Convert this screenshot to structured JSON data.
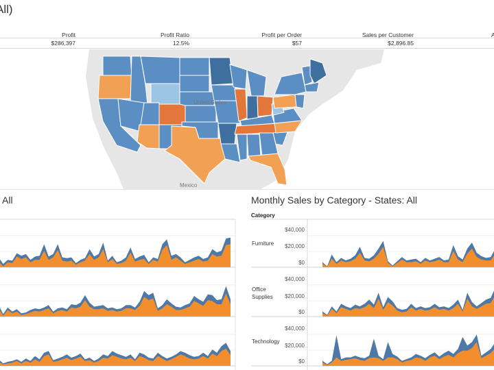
{
  "dashboard": {
    "title": "All)"
  },
  "kpis": [
    {
      "label": "Profit",
      "value": "$286,397"
    },
    {
      "label": "Profit Ratio",
      "value": "12.5%"
    },
    {
      "label": "Profit per Order",
      "value": "$57"
    },
    {
      "label": "Sales per Customer",
      "value": "$2,896.85"
    },
    {
      "label": "A",
      "value": ""
    }
  ],
  "map": {
    "labels": {
      "country": "United States",
      "neighbor": "Mexico"
    },
    "colors": {
      "ocean": "#ffffff",
      "land": "#e4e4e4",
      "blue": "#5b8fc4",
      "dark_blue": "#3f6f9f",
      "light_blue": "#9ec4e3",
      "orange": "#f2a154",
      "dark_orange": "#e3763a"
    }
  },
  "left_panel": {
    "title": "All"
  },
  "right_panel": {
    "title": "Monthly Sales by Category - States: All",
    "category_header": "Category",
    "categories": [
      {
        "name": "Furniture",
        "ticks": [
          "$40,000",
          "$20,000",
          "$0"
        ]
      },
      {
        "name": "Office Supplies",
        "ticks": [
          "$40,000",
          "$20,000",
          "$0"
        ]
      },
      {
        "name": "Technology",
        "ticks": [
          "$40,000",
          "$20,000",
          "$0"
        ]
      }
    ]
  },
  "chart_data": {
    "type": "area",
    "title": "Monthly Sales by Category - States: All",
    "colors": {
      "sales": "#4e79a7",
      "overlay": "#f28e2b"
    },
    "ylim": [
      0,
      50000
    ],
    "series_by_category": {
      "Furniture": {
        "left": [
          12000,
          4000,
          9000,
          8000,
          17000,
          14000,
          16000,
          9000,
          13000,
          14000,
          28000,
          13000,
          16000,
          28000,
          12000,
          11000,
          12000,
          5000,
          9000,
          11000,
          22000,
          13000,
          16000,
          30000,
          8000,
          14000,
          6000,
          8000,
          12000,
          24000,
          10000,
          13000,
          15000,
          6000,
          12000,
          10000,
          28000,
          34000,
          14000,
          16000,
          12000,
          6000,
          9000,
          12000,
          14000,
          10000,
          12000,
          22000,
          18000,
          20000,
          35000,
          36000
        ],
        "left_orange": [
          7000,
          1000,
          6000,
          5000,
          13000,
          10000,
          12000,
          6000,
          9000,
          9000,
          20000,
          9000,
          12000,
          21000,
          8000,
          7000,
          8000,
          3000,
          6000,
          8000,
          16000,
          9000,
          12000,
          22000,
          6000,
          10000,
          4000,
          5000,
          8000,
          18000,
          7000,
          9000,
          10000,
          4000,
          9000,
          7000,
          21000,
          27000,
          9000,
          12000,
          8000,
          4000,
          6000,
          8000,
          10000,
          7000,
          8000,
          16000,
          13000,
          14000,
          27000,
          28000
        ],
        "right": [
          6000,
          1000,
          15000,
          6000,
          11000,
          8000,
          10000,
          14000,
          24000,
          11000,
          10000,
          14000,
          22000,
          31000,
          7000,
          2000,
          7000,
          12000,
          8000,
          9000,
          10000,
          6000,
          11000,
          8000,
          10000,
          12000,
          8000,
          9000,
          26000,
          13000,
          9000,
          22000,
          29000,
          17000,
          13000,
          11000,
          12000,
          22000
        ],
        "right_orange": [
          4000,
          500,
          10000,
          4000,
          8000,
          6000,
          7000,
          10000,
          17000,
          8000,
          7000,
          10000,
          16000,
          24000,
          5000,
          1000,
          5000,
          9000,
          6000,
          6000,
          7000,
          4000,
          8000,
          6000,
          7000,
          9000,
          6000,
          6000,
          19000,
          9000,
          6000,
          16000,
          22000,
          12000,
          9000,
          8000,
          8000,
          16000
        ]
      },
      "Office Supplies": {
        "left": [
          14000,
          3000,
          11000,
          6000,
          9000,
          4000,
          5000,
          8000,
          10000,
          9000,
          11000,
          14000,
          6000,
          10000,
          11000,
          9000,
          15000,
          14000,
          17000,
          26000,
          17000,
          12000,
          13000,
          14000,
          10000,
          11000,
          9000,
          10000,
          14000,
          14000,
          11000,
          18000,
          31000,
          26000,
          29000,
          10000,
          14000,
          21000,
          16000,
          12000,
          11000,
          14000,
          16000,
          25000,
          21000,
          18000,
          27000,
          26000,
          20000,
          21000,
          37000,
          21000
        ],
        "left_orange": [
          10000,
          1000,
          8000,
          4000,
          6000,
          2000,
          3000,
          5000,
          7000,
          6000,
          8000,
          10000,
          4000,
          7000,
          8000,
          6000,
          11000,
          10000,
          12000,
          20000,
          12000,
          9000,
          9000,
          10000,
          7000,
          8000,
          6000,
          7000,
          10000,
          10000,
          8000,
          13000,
          24000,
          20000,
          22000,
          7000,
          10000,
          15000,
          12000,
          8000,
          8000,
          10000,
          12000,
          19000,
          16000,
          13000,
          20000,
          19000,
          15000,
          15000,
          28000,
          15000
        ],
        "right": [
          6000,
          2000,
          12000,
          6000,
          15000,
          12000,
          10000,
          14000,
          12000,
          15000,
          20000,
          14000,
          28000,
          11000,
          23000,
          18000,
          10000,
          8000,
          9000,
          15000,
          10000,
          12000,
          10000,
          11000,
          15000,
          11000,
          12000,
          10000,
          14000,
          20000,
          8000,
          28000,
          17000,
          12000,
          16000,
          20000,
          22000,
          34000
        ],
        "right_orange": [
          4000,
          1000,
          9000,
          4000,
          11000,
          9000,
          7000,
          10000,
          9000,
          11000,
          15000,
          10000,
          21000,
          8000,
          17000,
          13000,
          7000,
          5000,
          6000,
          11000,
          7000,
          9000,
          7000,
          8000,
          11000,
          8000,
          9000,
          7000,
          10000,
          15000,
          6000,
          21000,
          12000,
          9000,
          12000,
          15000,
          16000,
          26000
        ]
      },
      "Technology": {
        "left": [
          8000,
          3000,
          5000,
          6000,
          8000,
          5000,
          9000,
          6000,
          12000,
          8000,
          16000,
          18000,
          7000,
          9000,
          11000,
          14000,
          10000,
          12000,
          15000,
          8000,
          10000,
          6000,
          9000,
          14000,
          12000,
          18000,
          15000,
          13000,
          11000,
          14000,
          8000,
          16000,
          14000,
          10000,
          9000,
          16000,
          12000,
          9000,
          11000,
          14000,
          18000,
          16000,
          13000,
          11000,
          12000,
          16000,
          12000,
          20000,
          16000,
          24000,
          28000,
          18000
        ],
        "left_orange": [
          5000,
          2000,
          3000,
          4000,
          6000,
          3000,
          6000,
          4000,
          8000,
          5000,
          12000,
          14000,
          5000,
          6000,
          8000,
          10000,
          7000,
          9000,
          11000,
          6000,
          7000,
          4000,
          6000,
          10000,
          9000,
          13000,
          11000,
          9000,
          8000,
          10000,
          6000,
          12000,
          10000,
          7000,
          6000,
          12000,
          9000,
          6000,
          8000,
          11000,
          14000,
          12000,
          9000,
          8000,
          9000,
          12000,
          9000,
          15000,
          12000,
          18000,
          21000,
          13000
        ],
        "right": [
          6000,
          2000,
          6000,
          36000,
          8000,
          10000,
          10000,
          12000,
          10000,
          9000,
          12000,
          32000,
          12000,
          8000,
          28000,
          14000,
          11000,
          6000,
          8000,
          10000,
          14000,
          12000,
          9000,
          13000,
          16000,
          11000,
          15000,
          18000,
          14000,
          20000,
          34000,
          24000,
          28000,
          37000,
          12000,
          16000,
          20000,
          28000
        ],
        "right_orange": [
          4000,
          1000,
          4000,
          10000,
          6000,
          7000,
          8000,
          9000,
          7000,
          6000,
          9000,
          10000,
          9000,
          6000,
          10000,
          10000,
          8000,
          4000,
          6000,
          7000,
          10000,
          9000,
          6000,
          10000,
          12000,
          8000,
          11000,
          13000,
          10000,
          15000,
          18000,
          18000,
          21000,
          28000,
          9000,
          12000,
          15000,
          21000
        ]
      }
    }
  }
}
